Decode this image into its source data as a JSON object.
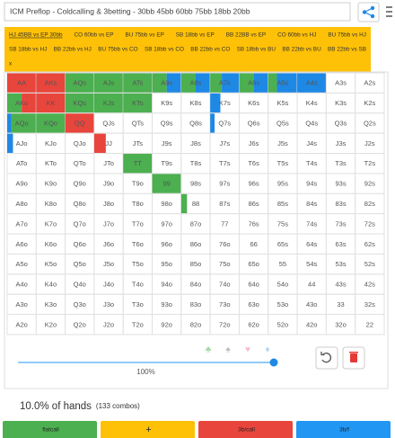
{
  "header": {
    "title": "ICM Preflop - Coldcalling & 3betting - 30bb 45bb 60bb 75bb 18bb 20bb"
  },
  "tags": [
    [
      "HJ 45BB vs EP 30bb",
      "CO 60bb vs EP",
      "BU 75bb vs EP",
      "SB 18bb vs EP",
      "BB 22BB vs EP",
      "CO 60bb vs HJ",
      "BU 75bb vs HJ"
    ],
    [
      "SB 18bb vs HJ",
      "BB 22bb vs HJ",
      "BU 75bb vs CO",
      "SB 18bb vs CO",
      "BB 22bb vs CO",
      "SB 18bb vs BU",
      "BB 22bb vs BU",
      "BB 22bb vs SB"
    ],
    [
      "x"
    ]
  ],
  "grid": [
    [
      {
        "label": "AA",
        "fill": [
          {
            "color": "#e8453c",
            "share": 1
          }
        ]
      },
      {
        "label": "AKs",
        "fill": [
          {
            "color": "#e8453c",
            "share": 1
          }
        ]
      },
      {
        "label": "AQs",
        "fill": [
          {
            "color": "#4caf50",
            "share": 1
          }
        ]
      },
      {
        "label": "AJs",
        "fill": [
          {
            "color": "#4caf50",
            "share": 1
          }
        ]
      },
      {
        "label": "ATs",
        "fill": [
          {
            "color": "#4caf50",
            "share": 1
          }
        ]
      },
      {
        "label": "A9s",
        "fill": [
          {
            "color": "#4caf50",
            "share": 0.5
          },
          {
            "color": "#1e88e5",
            "share": 0.5
          }
        ]
      },
      {
        "label": "A8s",
        "fill": [
          {
            "color": "#4caf50",
            "share": 0.5
          },
          {
            "color": "#1e88e5",
            "share": 0.5
          }
        ]
      },
      {
        "label": "A7s",
        "fill": [
          {
            "color": "#4caf50",
            "share": 0.4
          },
          {
            "color": "#1e88e5",
            "share": 0.6
          }
        ]
      },
      {
        "label": "A6s",
        "fill": [
          {
            "color": "#4caf50",
            "share": 0.5
          },
          {
            "color": "#1e88e5",
            "share": 0.5
          }
        ]
      },
      {
        "label": "A5s",
        "fill": [
          {
            "color": "#4caf50",
            "share": 0.3
          },
          {
            "color": "#1e88e5",
            "share": 0.7
          }
        ]
      },
      {
        "label": "A4s",
        "fill": [
          {
            "color": "#1e88e5",
            "share": 1
          }
        ]
      },
      {
        "label": "A3s"
      },
      {
        "label": "A2s"
      }
    ],
    [
      {
        "label": "AKo",
        "fill": [
          {
            "color": "#4caf50",
            "share": 0.5
          },
          {
            "color": "#e8453c",
            "share": 0.5
          }
        ]
      },
      {
        "label": "KK",
        "fill": [
          {
            "color": "#e8453c",
            "share": 1
          }
        ]
      },
      {
        "label": "KQs",
        "fill": [
          {
            "color": "#4caf50",
            "share": 1
          }
        ]
      },
      {
        "label": "KJs",
        "fill": [
          {
            "color": "#4caf50",
            "share": 1
          }
        ]
      },
      {
        "label": "KTs",
        "fill": [
          {
            "color": "#4caf50",
            "share": 1
          }
        ]
      },
      {
        "label": "K9s"
      },
      {
        "label": "K8s"
      },
      {
        "label": "K7s",
        "fill": [
          {
            "color": "#1e88e5",
            "share": 0.35
          }
        ]
      },
      {
        "label": "K6s"
      },
      {
        "label": "K5s"
      },
      {
        "label": "K4s"
      },
      {
        "label": "K3s"
      },
      {
        "label": "K2s"
      }
    ],
    [
      {
        "label": "AQo",
        "fill": [
          {
            "color": "#1e88e5",
            "share": 0.15
          },
          {
            "color": "#4caf50",
            "share": 0.85
          }
        ]
      },
      {
        "label": "KQo",
        "fill": [
          {
            "color": "#4caf50",
            "share": 1
          }
        ]
      },
      {
        "label": "QQ",
        "fill": [
          {
            "color": "#e8453c",
            "share": 1
          }
        ]
      },
      {
        "label": "QJs"
      },
      {
        "label": "QTs"
      },
      {
        "label": "Q9s"
      },
      {
        "label": "Q8s"
      },
      {
        "label": "Q7s",
        "fill": [
          {
            "color": "#1e88e5",
            "share": 0.15
          }
        ]
      },
      {
        "label": "Q6s"
      },
      {
        "label": "Q5s"
      },
      {
        "label": "Q4s"
      },
      {
        "label": "Q3s"
      },
      {
        "label": "Q2s"
      }
    ],
    [
      {
        "label": "AJo",
        "fill": [
          {
            "color": "#1e88e5",
            "share": 0.2
          }
        ]
      },
      {
        "label": "KJo"
      },
      {
        "label": "QJo"
      },
      {
        "label": "JJ",
        "fill": [
          {
            "color": "#e8453c",
            "share": 0.4
          }
        ]
      },
      {
        "label": "JTs"
      },
      {
        "label": "J9s"
      },
      {
        "label": "J8s"
      },
      {
        "label": "J7s"
      },
      {
        "label": "J6s"
      },
      {
        "label": "J5s"
      },
      {
        "label": "J4s"
      },
      {
        "label": "J3s"
      },
      {
        "label": "J2s"
      }
    ],
    [
      {
        "label": "ATo"
      },
      {
        "label": "KTo"
      },
      {
        "label": "QTo"
      },
      {
        "label": "JTo"
      },
      {
        "label": "TT",
        "fill": [
          {
            "color": "#4caf50",
            "share": 1
          }
        ]
      },
      {
        "label": "T9s"
      },
      {
        "label": "T8s"
      },
      {
        "label": "T7s"
      },
      {
        "label": "T6s"
      },
      {
        "label": "T5s"
      },
      {
        "label": "T4s"
      },
      {
        "label": "T3s"
      },
      {
        "label": "T2s"
      }
    ],
    [
      {
        "label": "A9o"
      },
      {
        "label": "K9o"
      },
      {
        "label": "Q9o"
      },
      {
        "label": "J9o"
      },
      {
        "label": "T9o"
      },
      {
        "label": "99",
        "fill": [
          {
            "color": "#4caf50",
            "share": 1
          }
        ]
      },
      {
        "label": "98s"
      },
      {
        "label": "97s"
      },
      {
        "label": "96s"
      },
      {
        "label": "95s"
      },
      {
        "label": "94s"
      },
      {
        "label": "93s"
      },
      {
        "label": "92s"
      }
    ],
    [
      {
        "label": "A8o"
      },
      {
        "label": "K8o"
      },
      {
        "label": "Q8o"
      },
      {
        "label": "J8o"
      },
      {
        "label": "T8o"
      },
      {
        "label": "98o"
      },
      {
        "label": "88",
        "fill": [
          {
            "color": "#4caf50",
            "share": 0.2
          }
        ]
      },
      {
        "label": "87s"
      },
      {
        "label": "86s"
      },
      {
        "label": "85s"
      },
      {
        "label": "84s"
      },
      {
        "label": "83s"
      },
      {
        "label": "82s"
      }
    ],
    [
      {
        "label": "A7o"
      },
      {
        "label": "K7o"
      },
      {
        "label": "Q7o"
      },
      {
        "label": "J7o"
      },
      {
        "label": "T7o"
      },
      {
        "label": "97o"
      },
      {
        "label": "87o"
      },
      {
        "label": "77"
      },
      {
        "label": "76s"
      },
      {
        "label": "75s"
      },
      {
        "label": "74s"
      },
      {
        "label": "73s"
      },
      {
        "label": "72s"
      }
    ],
    [
      {
        "label": "A6o"
      },
      {
        "label": "K6o"
      },
      {
        "label": "Q6o"
      },
      {
        "label": "J6o"
      },
      {
        "label": "T6o"
      },
      {
        "label": "96o"
      },
      {
        "label": "86o"
      },
      {
        "label": "76o"
      },
      {
        "label": "66"
      },
      {
        "label": "65s"
      },
      {
        "label": "64s"
      },
      {
        "label": "63s"
      },
      {
        "label": "62s"
      }
    ],
    [
      {
        "label": "A5o"
      },
      {
        "label": "K5o"
      },
      {
        "label": "Q5o"
      },
      {
        "label": "J5o"
      },
      {
        "label": "T5o"
      },
      {
        "label": "95o"
      },
      {
        "label": "85o"
      },
      {
        "label": "75o"
      },
      {
        "label": "65o"
      },
      {
        "label": "55"
      },
      {
        "label": "54s"
      },
      {
        "label": "53s"
      },
      {
        "label": "52s"
      }
    ],
    [
      {
        "label": "A4o"
      },
      {
        "label": "K4o"
      },
      {
        "label": "Q4o"
      },
      {
        "label": "J4o"
      },
      {
        "label": "T4o"
      },
      {
        "label": "94o"
      },
      {
        "label": "84o"
      },
      {
        "label": "74o"
      },
      {
        "label": "64o"
      },
      {
        "label": "54o"
      },
      {
        "label": "44"
      },
      {
        "label": "43s"
      },
      {
        "label": "42s"
      }
    ],
    [
      {
        "label": "A3o"
      },
      {
        "label": "K3o"
      },
      {
        "label": "Q3o"
      },
      {
        "label": "J3o"
      },
      {
        "label": "T3o"
      },
      {
        "label": "93o"
      },
      {
        "label": "83o"
      },
      {
        "label": "73o"
      },
      {
        "label": "63o"
      },
      {
        "label": "53o"
      },
      {
        "label": "43o"
      },
      {
        "label": "33"
      },
      {
        "label": "32s"
      }
    ],
    [
      {
        "label": "A2o"
      },
      {
        "label": "K2o"
      },
      {
        "label": "Q2o"
      },
      {
        "label": "J2o"
      },
      {
        "label": "T2o"
      },
      {
        "label": "92o"
      },
      {
        "label": "82o"
      },
      {
        "label": "72o"
      },
      {
        "label": "62o"
      },
      {
        "label": "52o"
      },
      {
        "label": "42o"
      },
      {
        "label": "32o"
      },
      {
        "label": "22"
      }
    ]
  ],
  "suits": [
    {
      "symbol": "♣",
      "color": "#a5d6a7"
    },
    {
      "symbol": "♠",
      "color": "#bdbdbd"
    },
    {
      "symbol": "♥",
      "color": "#f8bbd0"
    },
    {
      "symbol": "♦",
      "color": "#b3d4f5"
    }
  ],
  "slider": {
    "value": 100,
    "range": [
      0,
      100
    ],
    "label": "100%"
  },
  "summary": {
    "text": "10.0% of hands",
    "combos": "(133 combos)"
  },
  "actions": [
    {
      "label": "flatcall",
      "color": "#4caf50"
    },
    {
      "label": "+",
      "color": "#ffc107"
    },
    {
      "label": "3b/call",
      "color": "#e8453c"
    },
    {
      "label": "3b/f",
      "color": "#2196f3"
    }
  ]
}
